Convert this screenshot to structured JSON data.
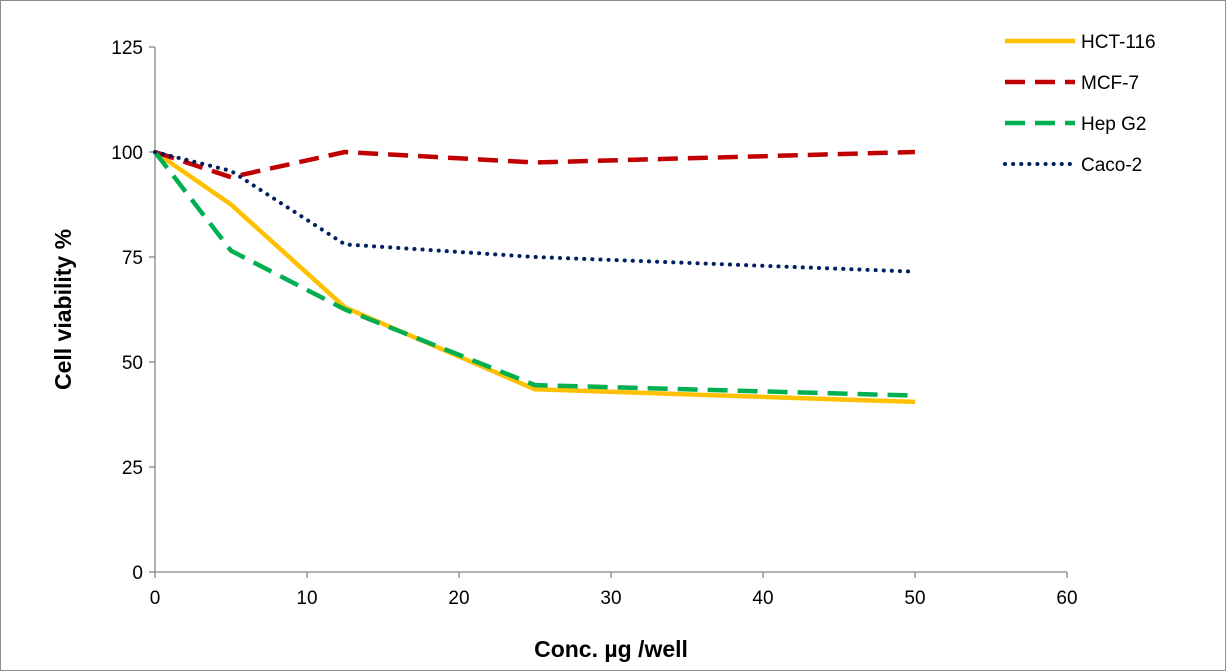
{
  "chart_data": {
    "type": "line",
    "title": "",
    "xlabel": "Conc. µg /well",
    "ylabel": "Cell viability %",
    "xlim": [
      0,
      60
    ],
    "ylim": [
      0,
      125
    ],
    "xticks": [
      0,
      10,
      20,
      30,
      40,
      50,
      60
    ],
    "yticks": [
      0,
      25,
      50,
      75,
      100,
      125
    ],
    "grid": false,
    "legend_position": "top-right",
    "series": [
      {
        "name": "HCT-116",
        "color": "#ffc000",
        "style": "solid",
        "x": [
          0,
          5,
          12.5,
          25,
          50
        ],
        "y": [
          100,
          87.5,
          63,
          43.5,
          40.5
        ]
      },
      {
        "name": "MCF-7",
        "color": "#c00000",
        "style": "dashed",
        "x": [
          0,
          5,
          12.5,
          25,
          50
        ],
        "y": [
          100,
          94,
          100,
          97.5,
          100
        ]
      },
      {
        "name": "Hep G2",
        "color": "#00b050",
        "style": "dashed",
        "x": [
          0,
          5,
          12.5,
          25,
          50
        ],
        "y": [
          100,
          76.5,
          62.5,
          44.5,
          42
        ]
      },
      {
        "name": "Caco-2",
        "color": "#002060",
        "style": "dotted",
        "x": [
          0,
          5,
          12.5,
          25,
          50
        ],
        "y": [
          100,
          95.5,
          78,
          75,
          71.5
        ]
      }
    ]
  }
}
